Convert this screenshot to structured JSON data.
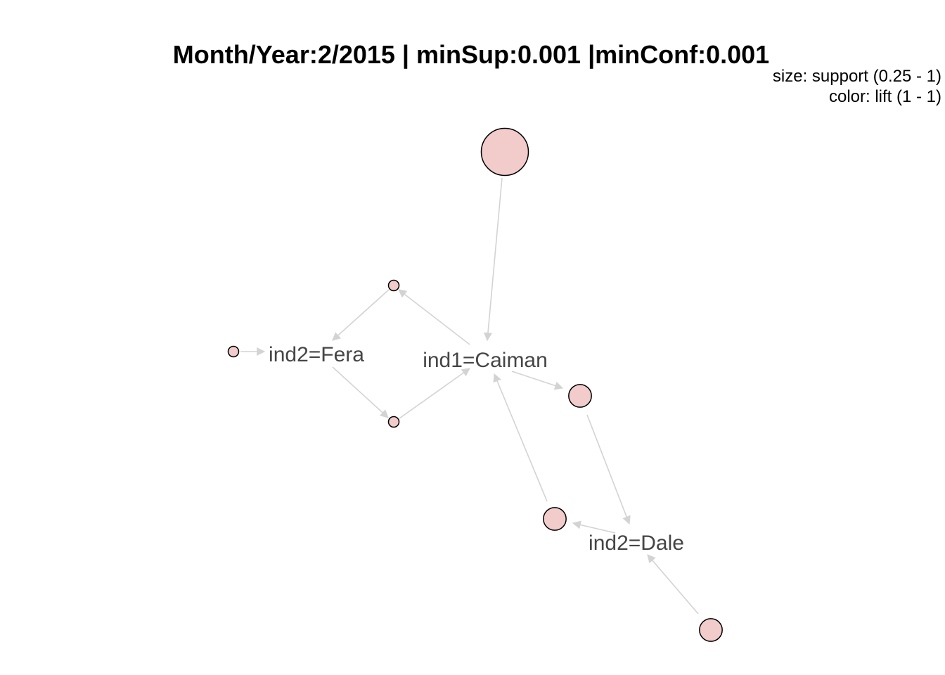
{
  "title": "Month/Year:2/2015 | minSup:0.001 |minConf:0.001",
  "legend": {
    "size": "size: support (0.25 - 1)",
    "color": "color: lift (1 - 1)"
  },
  "colors": {
    "node_fill": "#f2cbcb",
    "node_stroke": "#000000",
    "edge": "#d3d3d3",
    "label": "#454545"
  },
  "graph": {
    "items": [
      {
        "id": "caiman",
        "label": "ind1=Caiman"
      },
      {
        "id": "fera",
        "label": "ind2=Fera"
      },
      {
        "id": "dale",
        "label": "ind2=Dale"
      }
    ],
    "rules": [
      {
        "id": "r_top",
        "support": 1.0
      },
      {
        "id": "r_left",
        "support": 0.25
      },
      {
        "id": "r_upper",
        "support": 0.25
      },
      {
        "id": "r_lower",
        "support": 0.25
      },
      {
        "id": "r_right",
        "support": 0.5
      },
      {
        "id": "r_mid",
        "support": 0.5
      },
      {
        "id": "r_bottom",
        "support": 0.5
      }
    ],
    "edges": [
      {
        "from": "r_top",
        "to": "caiman"
      },
      {
        "from": "r_left",
        "to": "fera"
      },
      {
        "from": "caiman",
        "to": "r_upper"
      },
      {
        "from": "r_upper",
        "to": "fera"
      },
      {
        "from": "fera",
        "to": "r_lower"
      },
      {
        "from": "r_lower",
        "to": "caiman"
      },
      {
        "from": "caiman",
        "to": "r_right"
      },
      {
        "from": "r_right",
        "to": "dale"
      },
      {
        "from": "r_mid",
        "to": "caiman"
      },
      {
        "from": "dale",
        "to": "r_mid"
      },
      {
        "from": "r_bottom",
        "to": "dale"
      }
    ]
  }
}
